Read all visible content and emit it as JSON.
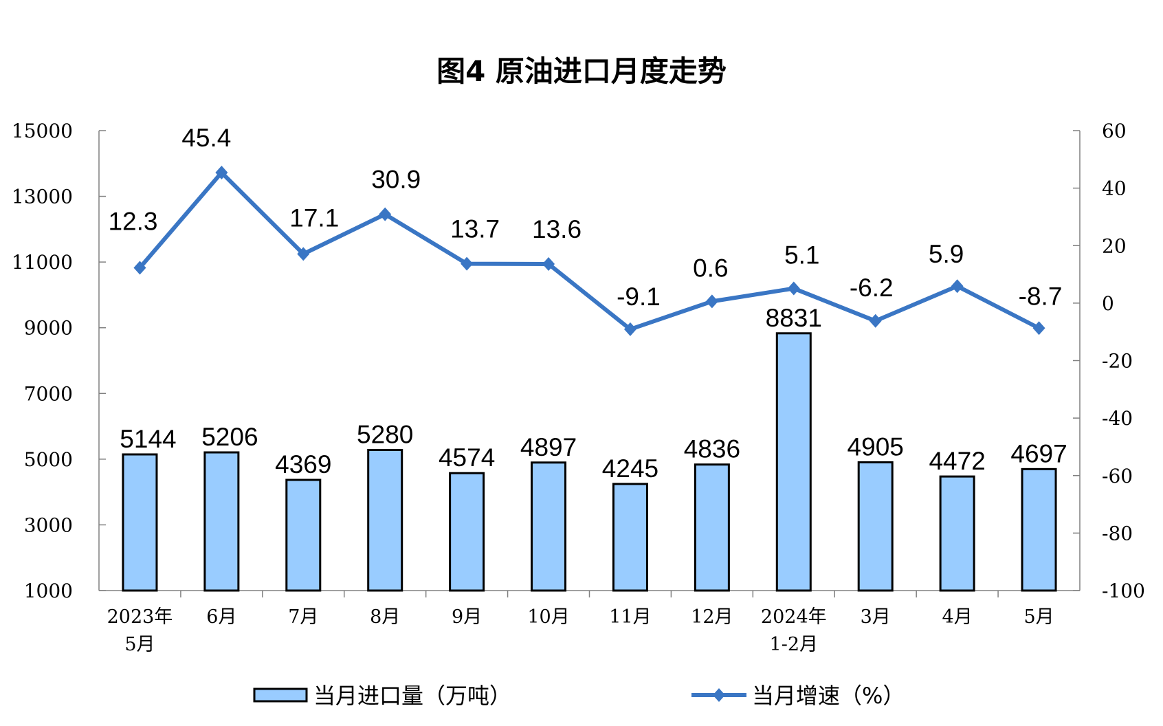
{
  "chart_data": {
    "type": "bar+line",
    "title": "图4  原油进口月度走势",
    "categories": [
      [
        "2023年",
        "5月"
      ],
      [
        "6月"
      ],
      [
        "7月"
      ],
      [
        "8月"
      ],
      [
        "9月"
      ],
      [
        "10月"
      ],
      [
        "11月"
      ],
      [
        "12月"
      ],
      [
        "2024年",
        "1-2月"
      ],
      [
        "3月"
      ],
      [
        "4月"
      ],
      [
        "5月"
      ]
    ],
    "series": [
      {
        "name": "当月进口量（万吨）",
        "type": "bar",
        "axis": "left",
        "color": "#99CCFF",
        "edge_color": "#000000",
        "values": [
          5144,
          5206,
          4369,
          5280,
          4574,
          4897,
          4245,
          4836,
          8831,
          4905,
          4472,
          4697
        ]
      },
      {
        "name": "当月增速（%）",
        "type": "line",
        "axis": "right",
        "color": "#3A76C4",
        "marker": "diamond",
        "values": [
          12.3,
          45.4,
          17.1,
          30.9,
          13.7,
          13.6,
          -9.1,
          0.6,
          5.1,
          -6.2,
          5.9,
          -8.7
        ]
      }
    ],
    "y_left": {
      "range": [
        1000,
        15000
      ],
      "ticks": [
        1000,
        3000,
        5000,
        7000,
        9000,
        11000,
        13000,
        15000
      ]
    },
    "y_right": {
      "range": [
        -100,
        60
      ],
      "ticks": [
        -100,
        -80,
        -60,
        -40,
        -20,
        0,
        20,
        40,
        60
      ]
    },
    "grid": false,
    "legend_position": "bottom"
  }
}
